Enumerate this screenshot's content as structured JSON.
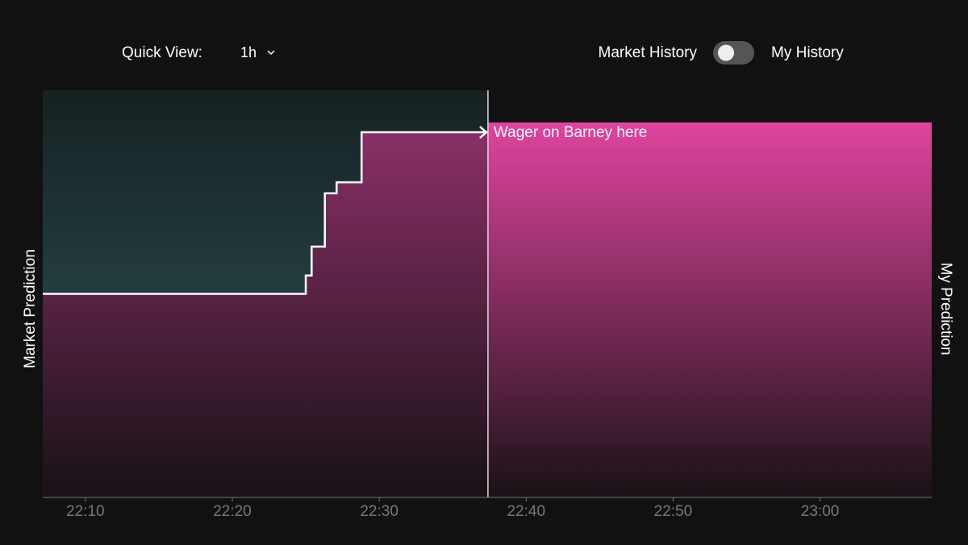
{
  "controls": {
    "quick_view_label": "Quick View:",
    "quick_view_value": "1h",
    "left_toggle_label": "Market History",
    "right_toggle_label": "My History"
  },
  "chart_data": {
    "type": "step",
    "annotation": "Wager on Barney here",
    "ylabel": "Market Prediction",
    "y2label": "My Prediction",
    "xlim": [
      "22:07:06",
      "23:07:36"
    ],
    "xticks": [
      "22:10",
      "22:20",
      "22:30",
      "22:40",
      "22:50",
      "23:00"
    ],
    "ylim": [
      0,
      100
    ],
    "marker_x": "22:37:24",
    "series": [
      {
        "color": "#ffffff",
        "x": [
          "22:07:06",
          "22:25:00",
          "22:25:24",
          "22:26:18",
          "22:27:06",
          "22:28:48",
          "22:37:24"
        ],
        "values": [
          50,
          54.5,
          61.6,
          74.7,
          77.4,
          89.7,
          89.7
        ]
      },
      {
        "color": "#e0449f",
        "x": [
          "22:37:24",
          "23:07:36"
        ],
        "values": [
          92.1,
          92.1
        ]
      }
    ]
  }
}
